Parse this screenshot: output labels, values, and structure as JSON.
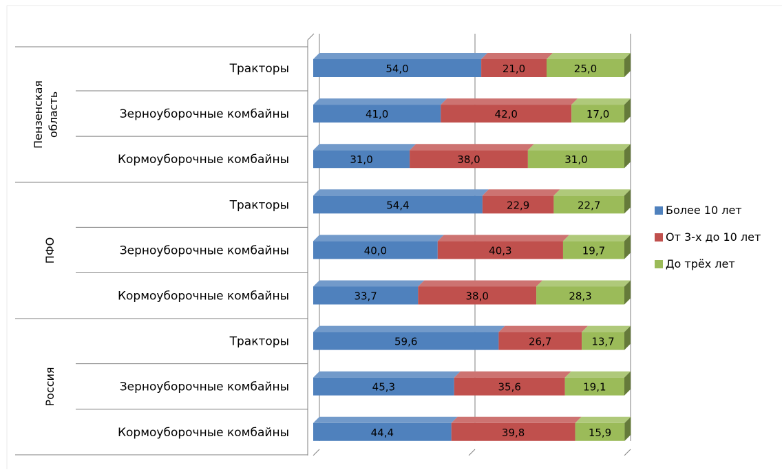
{
  "chart_data": {
    "type": "bar",
    "orientation": "horizontal",
    "stacked": "100%",
    "three_d": true,
    "groups": [
      {
        "name": "Пензенская область",
        "categories": [
          "Тракторы",
          "Зерноуборочные комбайны",
          "Кормоуборочные комбайны"
        ],
        "values": [
          [
            54.0,
            21.0,
            25.0
          ],
          [
            41.0,
            42.0,
            17.0
          ],
          [
            31.0,
            38.0,
            31.0
          ]
        ],
        "labels": [
          [
            "54,0",
            "21,0",
            "25,0"
          ],
          [
            "41,0",
            "42,0",
            "17,0"
          ],
          [
            "31,0",
            "38,0",
            "31,0"
          ]
        ]
      },
      {
        "name": "ПФО",
        "categories": [
          "Тракторы",
          "Зерноуборочные комбайны",
          "Кормоуборочные комбайны"
        ],
        "values": [
          [
            54.4,
            22.9,
            22.7
          ],
          [
            40.0,
            40.3,
            19.7
          ],
          [
            33.7,
            38.0,
            28.3
          ]
        ],
        "labels": [
          [
            "54,4",
            "22,9",
            "22,7"
          ],
          [
            "40,0",
            "40,3",
            "19,7"
          ],
          [
            "33,7",
            "38,0",
            "28,3"
          ]
        ]
      },
      {
        "name": "Россия",
        "categories": [
          "Тракторы",
          "Зерноуборочные комбайны",
          "Кормоуборочные комбайны"
        ],
        "values": [
          [
            59.6,
            26.7,
            13.7
          ],
          [
            45.3,
            35.6,
            19.1
          ],
          [
            44.4,
            39.8,
            15.9
          ]
        ],
        "labels": [
          [
            "59,6",
            "26,7",
            "13,7"
          ],
          [
            "45,3",
            "35,6",
            "19,1"
          ],
          [
            "44,4",
            "39,8",
            "15,9"
          ]
        ]
      }
    ],
    "series": [
      {
        "name": "Более 10 лет",
        "color": "#4f81bd"
      },
      {
        "name": "От 3-х до 10 лет",
        "color": "#c0504d"
      },
      {
        "name": "До трёх лет",
        "color": "#9bbb59"
      }
    ],
    "xlim": [
      0,
      100
    ],
    "grid": "vertical major lines",
    "legend_position": "right"
  }
}
